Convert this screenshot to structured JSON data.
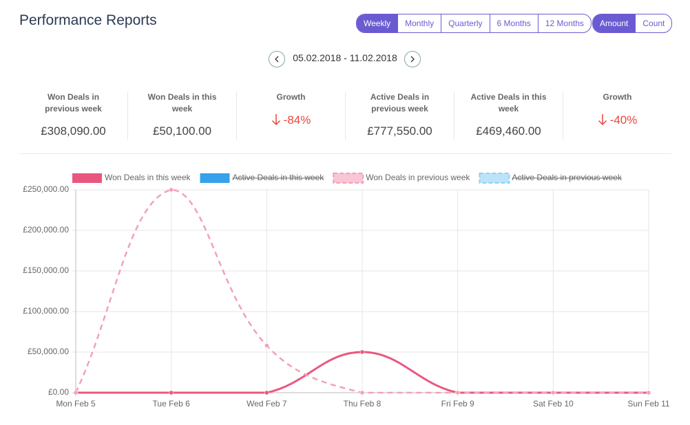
{
  "title": "Performance Reports",
  "period_buttons": [
    {
      "label": "Weekly",
      "active": true
    },
    {
      "label": "Monthly",
      "active": false
    },
    {
      "label": "Quarterly",
      "active": false
    },
    {
      "label": "6 Months",
      "active": false
    },
    {
      "label": "12 Months",
      "active": false
    }
  ],
  "metric_buttons": [
    {
      "label": "Amount",
      "active": true
    },
    {
      "label": "Count",
      "active": false
    }
  ],
  "date_range": "05.02.2018 - 11.02.2018",
  "stats": [
    {
      "label": "Won Deals in previous week",
      "value": "£308,090.00"
    },
    {
      "label": "Won Deals in this week",
      "value": "£50,100.00"
    },
    {
      "label": "Growth",
      "value": "-84%",
      "direction": "down"
    },
    {
      "label": "Active Deals in previous week",
      "value": "£777,550.00"
    },
    {
      "label": "Active Deals in this week",
      "value": "£469,460.00"
    },
    {
      "label": "Growth",
      "value": "-40%",
      "direction": "down"
    }
  ],
  "chart_data": {
    "type": "line",
    "categories": [
      "Mon Feb 5",
      "Tue Feb 6",
      "Wed Feb 7",
      "Thu Feb 8",
      "Fri Feb 9",
      "Sat Feb 10",
      "Sun Feb 11"
    ],
    "series": [
      {
        "name": "Won Deals in this week",
        "color": "#e9577f",
        "dashed": false,
        "hidden": false,
        "values": [
          0,
          0,
          0,
          50100,
          0,
          0,
          0
        ]
      },
      {
        "name": "Active Deals in this week",
        "color": "#36a2eb",
        "dashed": false,
        "hidden": true,
        "values": [
          null,
          null,
          null,
          null,
          null,
          null,
          null
        ]
      },
      {
        "name": "Won Deals in previous week",
        "color": "#f3a0b8",
        "dashed": true,
        "hidden": false,
        "values": [
          0,
          250000,
          58090,
          0,
          0,
          0,
          0
        ]
      },
      {
        "name": "Active Deals in previous week",
        "color": "#8fd0f5",
        "dashed": true,
        "hidden": true,
        "values": [
          null,
          null,
          null,
          null,
          null,
          null,
          null
        ]
      }
    ],
    "ylim": [
      0,
      250000
    ],
    "yticks": [
      {
        "value": 0,
        "label": "£0.00"
      },
      {
        "value": 50000,
        "label": "£50,000.00"
      },
      {
        "value": 100000,
        "label": "£100,000.00"
      },
      {
        "value": 150000,
        "label": "£150,000.00"
      },
      {
        "value": 200000,
        "label": "£200,000.00"
      },
      {
        "value": 250000,
        "label": "£250,000.00"
      }
    ],
    "grid": true
  }
}
